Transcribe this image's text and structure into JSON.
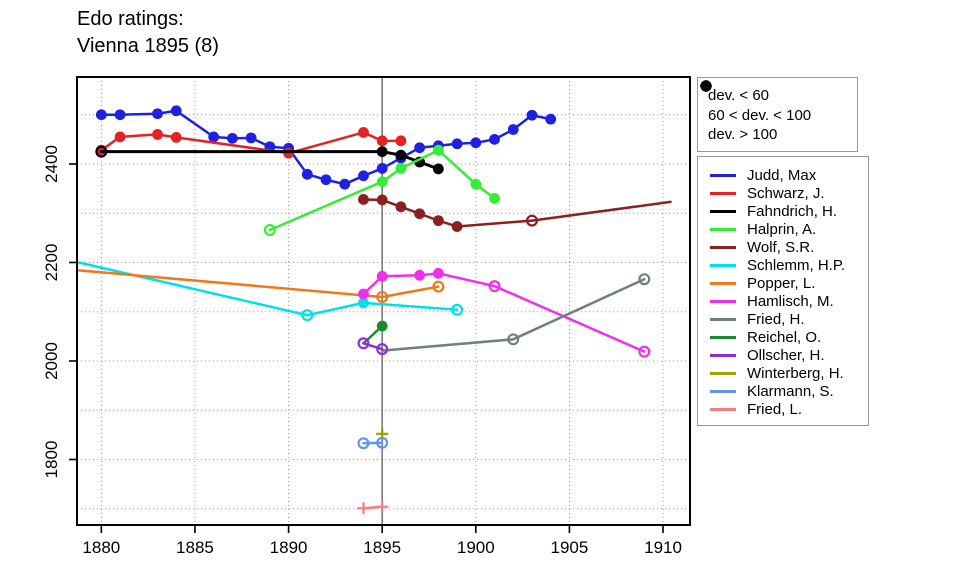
{
  "title": {
    "line1": "Edo ratings:",
    "line2": "Vienna 1895 (8)"
  },
  "chart_data": {
    "type": "line",
    "title": "Edo ratings: Vienna 1895 (8)",
    "x_axis": {
      "ticks": [
        1880,
        1885,
        1890,
        1895,
        1900,
        1905,
        1910
      ],
      "range": [
        1878.7,
        1911.44
      ],
      "grid_step": 5
    },
    "y_axis": {
      "ticks": [
        1800,
        2000,
        2200,
        2400
      ],
      "range": [
        1667,
        2576.6
      ],
      "grid_step": 100,
      "grid_min": 1700,
      "grid_max": 2500
    },
    "event_year_line": 1895,
    "grid_on": true,
    "legend_position": "right-outside",
    "marker_legend": [
      {
        "marker": "filled",
        "label": "dev. < 60"
      },
      {
        "marker": "open",
        "label": "60 < dev. < 100"
      },
      {
        "marker": "plus",
        "label": "dev. > 100"
      }
    ],
    "marker_meaning": {
      "filled": "dev. < 60",
      "open": "60 < dev. < 100",
      "plus": "dev. > 100",
      "none": "line end / hidden marker"
    },
    "series": [
      {
        "name": "Judd, Max",
        "color": "#2020E0",
        "points": [
          {
            "x": 1880,
            "y": 2500,
            "m": "f"
          },
          {
            "x": 1881,
            "y": 2500,
            "m": "f"
          },
          {
            "x": 1883,
            "y": 2502,
            "m": "f"
          },
          {
            "x": 1884,
            "y": 2508,
            "m": "f"
          },
          {
            "x": 1886,
            "y": 2455,
            "m": "f"
          },
          {
            "x": 1887,
            "y": 2452,
            "m": "f"
          },
          {
            "x": 1888,
            "y": 2453,
            "m": "f"
          },
          {
            "x": 1889,
            "y": 2435,
            "m": "f"
          },
          {
            "x": 1890,
            "y": 2432,
            "m": "f"
          },
          {
            "x": 1891,
            "y": 2379,
            "m": "f"
          },
          {
            "x": 1892,
            "y": 2368,
            "m": "f"
          },
          {
            "x": 1893,
            "y": 2359,
            "m": "f"
          },
          {
            "x": 1894,
            "y": 2376,
            "m": "f"
          },
          {
            "x": 1895,
            "y": 2391,
            "m": "f"
          },
          {
            "x": 1896,
            "y": 2412,
            "m": "f"
          },
          {
            "x": 1897,
            "y": 2433,
            "m": "f"
          },
          {
            "x": 1898,
            "y": 2437,
            "m": "f"
          },
          {
            "x": 1899,
            "y": 2441,
            "m": "f"
          },
          {
            "x": 1900,
            "y": 2443,
            "m": "f"
          },
          {
            "x": 1901,
            "y": 2450,
            "m": "f"
          },
          {
            "x": 1902,
            "y": 2470,
            "m": "f"
          },
          {
            "x": 1903,
            "y": 2499,
            "m": "f"
          },
          {
            "x": 1904,
            "y": 2491,
            "m": "f"
          }
        ]
      },
      {
        "name": "Schwarz, J.",
        "color": "#E42222",
        "points": [
          {
            "x": 1880,
            "y": 2428,
            "m": "f"
          },
          {
            "x": 1881,
            "y": 2455,
            "m": "f"
          },
          {
            "x": 1883,
            "y": 2460,
            "m": "f"
          },
          {
            "x": 1884,
            "y": 2454,
            "m": "f"
          },
          {
            "x": 1890,
            "y": 2422,
            "m": "f"
          },
          {
            "x": 1894,
            "y": 2464,
            "m": "f"
          },
          {
            "x": 1895,
            "y": 2447,
            "m": "f"
          },
          {
            "x": 1896,
            "y": 2447,
            "m": "f"
          }
        ]
      },
      {
        "name": "Fahndrich, H.",
        "color": "#000000",
        "points": [
          {
            "x": 1880,
            "y": 2425,
            "m": "o"
          },
          {
            "x": 1895,
            "y": 2425,
            "m": "f"
          },
          {
            "x": 1896,
            "y": 2418,
            "m": "f"
          },
          {
            "x": 1897,
            "y": 2404,
            "m": "f"
          },
          {
            "x": 1898,
            "y": 2390,
            "m": "f"
          }
        ]
      },
      {
        "name": "Halprin, A.",
        "color": "#33EE33",
        "points": [
          {
            "x": 1889,
            "y": 2266,
            "m": "o"
          },
          {
            "x": 1895,
            "y": 2364,
            "m": "f"
          },
          {
            "x": 1896,
            "y": 2391,
            "m": "f"
          },
          {
            "x": 1898,
            "y": 2428,
            "m": "f"
          },
          {
            "x": 1900,
            "y": 2359,
            "m": "f"
          },
          {
            "x": 1901,
            "y": 2330,
            "m": "f"
          }
        ]
      },
      {
        "name": "Wolf, S.R.",
        "color": "#8B2020",
        "points": [
          {
            "x": 1894,
            "y": 2328,
            "m": "f"
          },
          {
            "x": 1895,
            "y": 2327,
            "m": "f"
          },
          {
            "x": 1896,
            "y": 2313,
            "m": "f"
          },
          {
            "x": 1897,
            "y": 2299,
            "m": "f"
          },
          {
            "x": 1898,
            "y": 2285,
            "m": "f"
          },
          {
            "x": 1899,
            "y": 2273,
            "m": "f"
          },
          {
            "x": 1903,
            "y": 2285,
            "m": "o"
          },
          {
            "x": 1910.4,
            "y": 2323,
            "m": "n"
          }
        ]
      },
      {
        "name": "Schlemm, H.P.",
        "color": "#00E0E8",
        "points": [
          {
            "x": 1878.8,
            "y": 2200,
            "m": "n"
          },
          {
            "x": 1891,
            "y": 2093,
            "m": "o"
          },
          {
            "x": 1894,
            "y": 2118,
            "m": "f"
          },
          {
            "x": 1899,
            "y": 2104,
            "m": "o"
          }
        ]
      },
      {
        "name": "Popper, L.",
        "color": "#F07818",
        "points": [
          {
            "x": 1878.8,
            "y": 2184,
            "m": "n"
          },
          {
            "x": 1895,
            "y": 2130,
            "m": "o"
          },
          {
            "x": 1898,
            "y": 2151,
            "m": "o"
          }
        ]
      },
      {
        "name": "Hamlisch, M.",
        "color": "#EE30EE",
        "points": [
          {
            "x": 1894,
            "y": 2136,
            "m": "f"
          },
          {
            "x": 1895,
            "y": 2172,
            "m": "f"
          },
          {
            "x": 1897,
            "y": 2174,
            "m": "f"
          },
          {
            "x": 1898,
            "y": 2178,
            "m": "f"
          },
          {
            "x": 1901,
            "y": 2152,
            "m": "o"
          },
          {
            "x": 1909,
            "y": 2019,
            "m": "o"
          }
        ]
      },
      {
        "name": "Fried, H.",
        "color": "#6E7F85",
        "points": [
          {
            "x": 1895,
            "y": 2021,
            "m": "n"
          },
          {
            "x": 1902,
            "y": 2044,
            "m": "o"
          },
          {
            "x": 1909,
            "y": 2166,
            "m": "o"
          }
        ]
      },
      {
        "name": "Reichel, O.",
        "color": "#1C8B2C",
        "points": [
          {
            "x": 1894,
            "y": 2036,
            "m": "n"
          },
          {
            "x": 1895,
            "y": 2071,
            "m": "f"
          }
        ]
      },
      {
        "name": "Ollscher, H.",
        "color": "#8B30D8",
        "points": [
          {
            "x": 1894,
            "y": 2036,
            "m": "o"
          },
          {
            "x": 1895,
            "y": 2024,
            "m": "o"
          }
        ]
      },
      {
        "name": "Winterberg, H.",
        "color": "#A0A000",
        "points": [
          {
            "x": 1895,
            "y": 1852,
            "m": "p"
          }
        ]
      },
      {
        "name": "Klarmann, S.",
        "color": "#6495ED",
        "points": [
          {
            "x": 1894,
            "y": 1833,
            "m": "o"
          },
          {
            "x": 1895,
            "y": 1834,
            "m": "o"
          }
        ]
      },
      {
        "name": "Fried, L.",
        "color": "#F28080",
        "points": [
          {
            "x": 1894,
            "y": 1701,
            "m": "p"
          },
          {
            "x": 1895,
            "y": 1704,
            "m": "p"
          }
        ]
      }
    ]
  }
}
